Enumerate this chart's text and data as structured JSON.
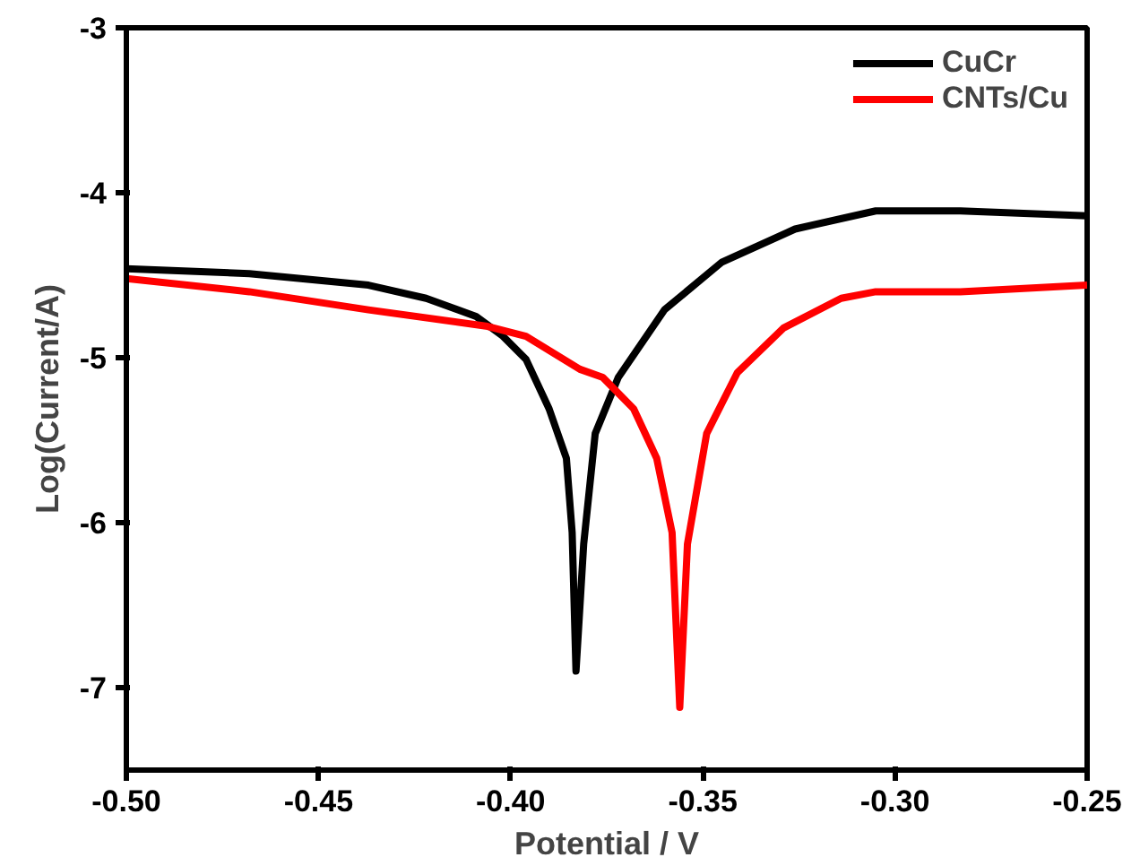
{
  "chart_data": {
    "type": "line",
    "xlabel": "Potential / V",
    "ylabel": "Log(Current/A)",
    "xlim": [
      -0.5,
      -0.25
    ],
    "xticks": [
      {
        "value": -0.5,
        "label": "-0.50"
      },
      -0.45,
      {
        "value": -0.4,
        "label": "-0.40"
      },
      -0.35,
      {
        "value": -0.3,
        "label": "-0.30"
      },
      -0.25
    ],
    "ylim": [
      -7.5,
      -3
    ],
    "yticks": [
      -7,
      -6,
      -5,
      -4,
      -3
    ],
    "grid": false,
    "legend": "top right",
    "line_style": "solid",
    "marker": "none",
    "series": [
      {
        "name": "CuCr",
        "color": "#000000",
        "x": [
          -0.5,
          -0.468,
          -0.437,
          -0.422,
          -0.409,
          -0.402,
          -0.396,
          -0.39,
          -0.3855,
          -0.384,
          -0.383,
          -0.381,
          -0.378,
          -0.372,
          -0.36,
          -0.345,
          -0.326,
          -0.305,
          -0.283,
          -0.25
        ],
        "values": [
          -4.46,
          -4.49,
          -4.56,
          -4.64,
          -4.75,
          -4.87,
          -5.01,
          -5.31,
          -5.61,
          -6.06,
          -6.9,
          -6.13,
          -5.46,
          -5.12,
          -4.71,
          -4.42,
          -4.22,
          -4.11,
          -4.11,
          -4.14
        ]
      },
      {
        "name": "CNTs/Cu",
        "color": "#ff0000",
        "x": [
          -0.5,
          -0.468,
          -0.437,
          -0.406,
          -0.396,
          -0.382,
          -0.376,
          -0.368,
          -0.362,
          -0.358,
          -0.356,
          -0.354,
          -0.349,
          -0.341,
          -0.329,
          -0.314,
          -0.305,
          -0.283,
          -0.25
        ],
        "values": [
          -4.52,
          -4.6,
          -4.71,
          -4.81,
          -4.87,
          -5.07,
          -5.12,
          -5.31,
          -5.61,
          -6.06,
          -7.12,
          -6.13,
          -5.46,
          -5.09,
          -4.82,
          -4.64,
          -4.6,
          -4.6,
          -4.56
        ]
      }
    ]
  }
}
